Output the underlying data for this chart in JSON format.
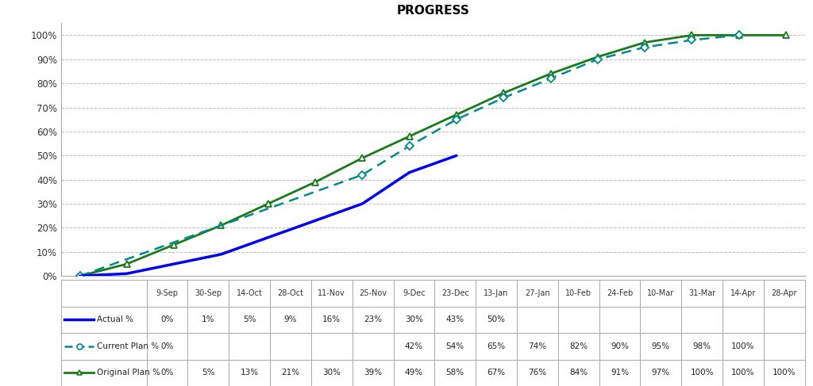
{
  "title": "PROGRESS",
  "x_labels": [
    "9-Sep",
    "30-Sep",
    "14-Oct",
    "28-Oct",
    "11-Nov",
    "25-Nov",
    "9-Dec",
    "23-Dec",
    "13-Jan",
    "27-Jan",
    "10-Feb",
    "24-Feb",
    "10-Mar",
    "31-Mar",
    "14-Apr",
    "28-Apr"
  ],
  "original_plan": [
    0,
    5,
    13,
    21,
    30,
    39,
    49,
    58,
    67,
    76,
    84,
    91,
    97,
    100,
    100,
    100
  ],
  "current_plan": [
    0,
    null,
    null,
    null,
    null,
    null,
    42,
    54,
    65,
    74,
    82,
    90,
    95,
    98,
    100,
    null
  ],
  "actual": [
    0,
    1,
    5,
    9,
    16,
    23,
    30,
    43,
    50,
    null,
    null,
    null,
    null,
    null,
    null,
    null
  ],
  "original_plan_color": "#1a7a1a",
  "current_plan_color": "#008b8b",
  "actual_color": "#0000ee",
  "background_color": "#ffffff",
  "grid_color": "#bbbbbb",
  "ylim": [
    0,
    105
  ],
  "yticks": [
    0,
    10,
    20,
    30,
    40,
    50,
    60,
    70,
    80,
    90,
    100
  ],
  "ytick_labels": [
    "0%",
    "10%",
    "20%",
    "30%",
    "40%",
    "50%",
    "60%",
    "70%",
    "80%",
    "90%",
    "100%"
  ],
  "row_labels": [
    "Original Plan %",
    "Current Plan %",
    "Actual %"
  ]
}
